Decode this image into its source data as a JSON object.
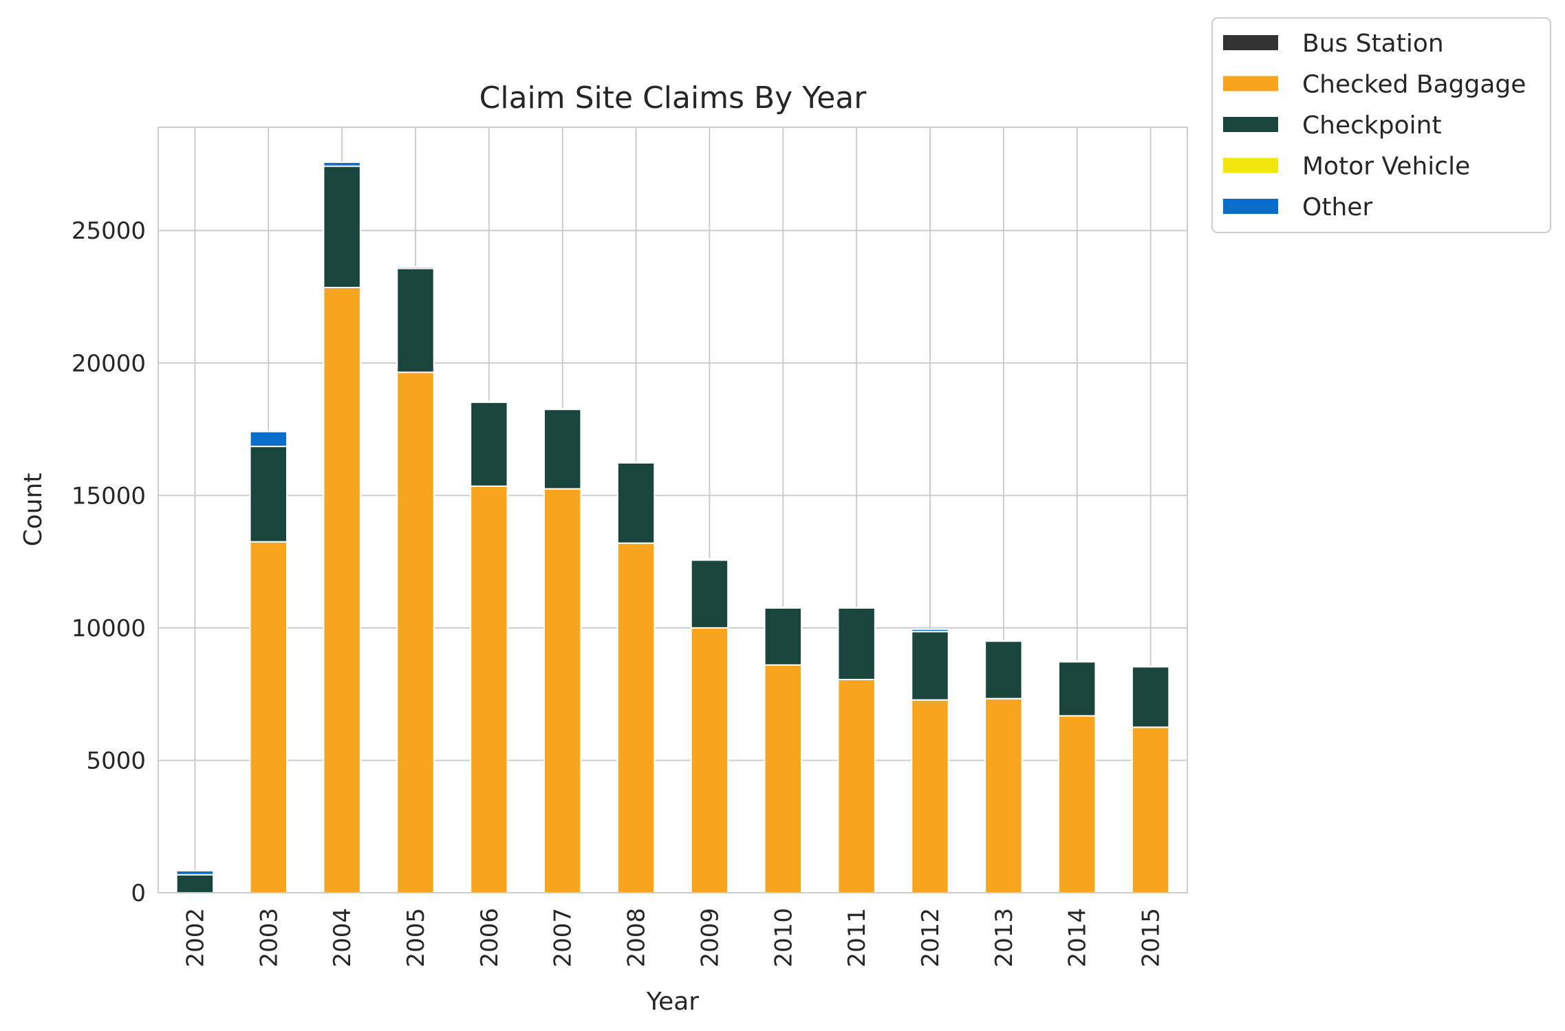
{
  "chart_data": {
    "type": "bar",
    "stacked": true,
    "title": "Claim Site Claims By Year",
    "xlabel": "Year",
    "ylabel": "Count",
    "ylim": [
      0,
      28900
    ],
    "yticks": [
      0,
      5000,
      10000,
      15000,
      20000,
      25000
    ],
    "grid": true,
    "legend": "outside-top-right",
    "categories": [
      "2002",
      "2003",
      "2004",
      "2005",
      "2006",
      "2007",
      "2008",
      "2009",
      "2010",
      "2011",
      "2012",
      "2013",
      "2014",
      "2015"
    ],
    "series": [
      {
        "name": "Bus Station",
        "color": "#333333",
        "values": [
          0,
          0,
          0,
          0,
          0,
          0,
          0,
          0,
          0,
          0,
          0,
          0,
          0,
          0
        ]
      },
      {
        "name": "Checked Baggage",
        "color": "#f7a51e",
        "values": [
          0,
          13250,
          22850,
          19650,
          15350,
          15250,
          13200,
          10000,
          8600,
          8050,
          7280,
          7330,
          6680,
          6250
        ]
      },
      {
        "name": "Checkpoint",
        "color": "#19453c",
        "values": [
          680,
          3600,
          4580,
          3920,
          3170,
          3000,
          3030,
          2560,
          2150,
          2700,
          2580,
          2170,
          2040,
          2280
        ]
      },
      {
        "name": "Motor Vehicle",
        "color": "#f2e60f",
        "values": [
          0,
          0,
          0,
          0,
          0,
          0,
          0,
          0,
          0,
          0,
          0,
          0,
          0,
          0
        ]
      },
      {
        "name": "Other",
        "color": "#0a6ec8",
        "values": [
          150,
          560,
          150,
          60,
          30,
          20,
          20,
          30,
          20,
          20,
          90,
          20,
          20,
          20
        ]
      }
    ]
  }
}
